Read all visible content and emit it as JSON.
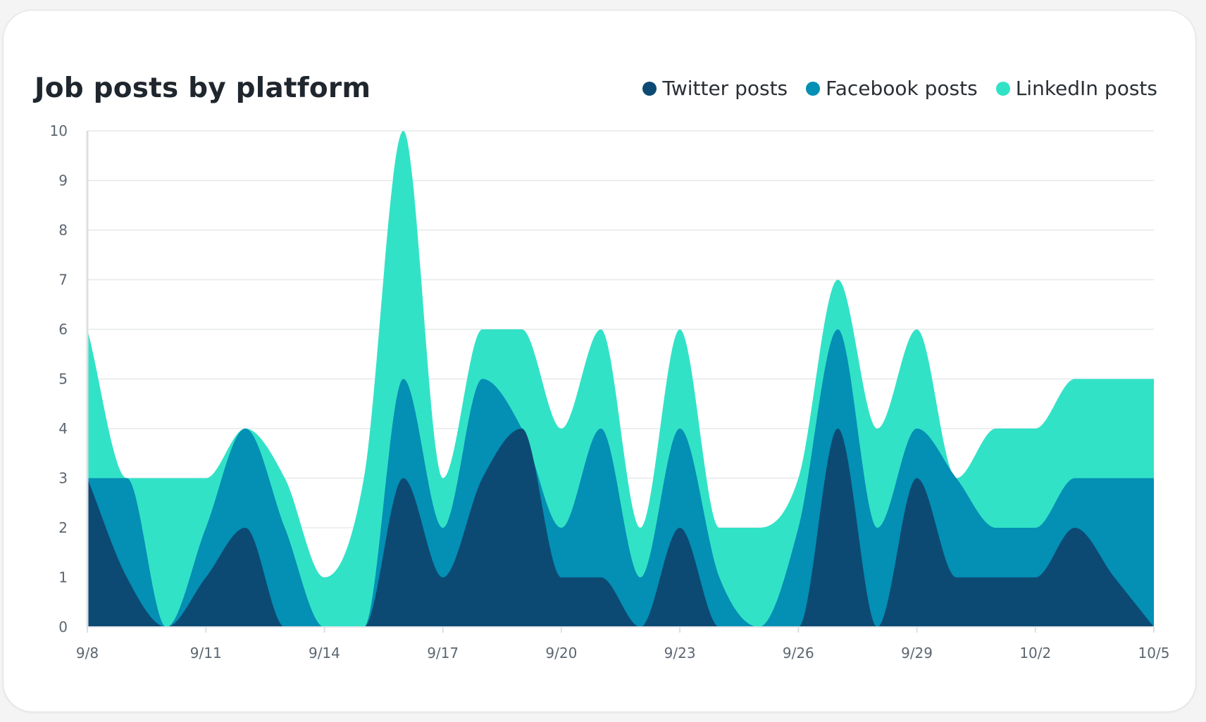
{
  "chart_data": {
    "type": "area",
    "stacked": true,
    "smooth": true,
    "title": "Job posts by platform",
    "xlabel": "",
    "ylabel": "",
    "ylim": [
      0,
      10
    ],
    "yticks": [
      "0",
      "1",
      "2",
      "3",
      "4",
      "5",
      "6",
      "7",
      "8",
      "9",
      "10"
    ],
    "xticks": [
      "9/8",
      "9/11",
      "9/14",
      "9/17",
      "9/20",
      "9/23",
      "9/26",
      "9/29",
      "10/2",
      "10/5"
    ],
    "x": [
      "9/8",
      "9/9",
      "9/10",
      "9/11",
      "9/12",
      "9/13",
      "9/14",
      "9/15",
      "9/16",
      "9/17",
      "9/18",
      "9/19",
      "9/20",
      "9/21",
      "9/22",
      "9/23",
      "9/24",
      "9/25",
      "9/26",
      "9/27",
      "9/28",
      "9/29",
      "9/30",
      "10/1",
      "10/2",
      "10/3",
      "10/4",
      "10/5"
    ],
    "series": [
      {
        "name": "Twitter posts",
        "color": "#0d4a73",
        "values": [
          3,
          1,
          0,
          1,
          2,
          0,
          0,
          0,
          3,
          1,
          3,
          4,
          1,
          1,
          0,
          2,
          0,
          0,
          0,
          4,
          0,
          3,
          1,
          1,
          1,
          2,
          1,
          0
        ]
      },
      {
        "name": "Facebook posts",
        "color": "#048fb4",
        "values": [
          0,
          2,
          0,
          1,
          2,
          2,
          0,
          0,
          2,
          1,
          2,
          0,
          1,
          3,
          1,
          2,
          1,
          0,
          2,
          2,
          2,
          1,
          2,
          1,
          1,
          1,
          2,
          3
        ]
      },
      {
        "name": "LinkedIn posts",
        "color": "#32e2c7",
        "values": [
          3,
          0,
          3,
          1,
          0,
          1,
          1,
          3,
          5,
          1,
          1,
          2,
          2,
          2,
          1,
          2,
          1,
          2,
          1,
          1,
          2,
          2,
          0,
          2,
          2,
          2,
          2,
          2
        ]
      }
    ]
  },
  "colors": {
    "grid": "#e6e8ea",
    "axis": "#dcdfe2"
  }
}
